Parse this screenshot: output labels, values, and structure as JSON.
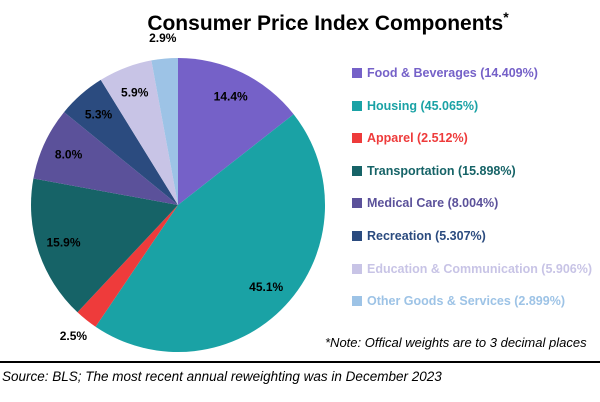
{
  "title": "Consumer Price Index Components",
  "title_superscript": "*",
  "footnote": "*Note: Offical weights are to 3 decimal places",
  "source_line": "Source: BLS; The most recent annual reweighting was in December 2023",
  "chart_data": {
    "type": "pie",
    "title": "Consumer Price Index Components*",
    "start_angle_deg": 0,
    "direction": "clockwise",
    "legend_position": "right",
    "slices": [
      {
        "label": "Food & Beverages",
        "value": 14.409,
        "data_label": "14.4%",
        "legend_label": "Food & Beverages (14.409%)",
        "color": "#7561C8",
        "label_placement": "inside"
      },
      {
        "label": "Housing",
        "value": 45.065,
        "data_label": "45.1%",
        "legend_label": "Housing (45.065%)",
        "color": "#1AA2A5",
        "label_placement": "inside"
      },
      {
        "label": "Apparel",
        "value": 2.512,
        "data_label": "2.5%",
        "legend_label": "Apparel (2.512%)",
        "color": "#EE3B3B",
        "label_placement": "outside"
      },
      {
        "label": "Transportation",
        "value": 15.898,
        "data_label": "15.9%",
        "legend_label": "Transportation (15.898%)",
        "color": "#166367",
        "label_placement": "inside"
      },
      {
        "label": "Medical Care",
        "value": 8.004,
        "data_label": "8.0%",
        "legend_label": "Medical Care (8.004%)",
        "color": "#5B519A",
        "label_placement": "inside"
      },
      {
        "label": "Recreation",
        "value": 5.307,
        "data_label": "5.3%",
        "legend_label": "Recreation (5.307%)",
        "color": "#2B4B7F",
        "label_placement": "inside"
      },
      {
        "label": "Education & Communication",
        "value": 5.906,
        "data_label": "5.9%",
        "legend_label": "Education & Communication (5.906%)",
        "color": "#C8C4E6",
        "label_placement": "inside"
      },
      {
        "label": "Other Goods & Services",
        "value": 2.899,
        "data_label": "2.9%",
        "legend_label": "Other Goods & Services (2.899%)",
        "color": "#9DC3E6",
        "label_placement": "outside"
      }
    ]
  }
}
